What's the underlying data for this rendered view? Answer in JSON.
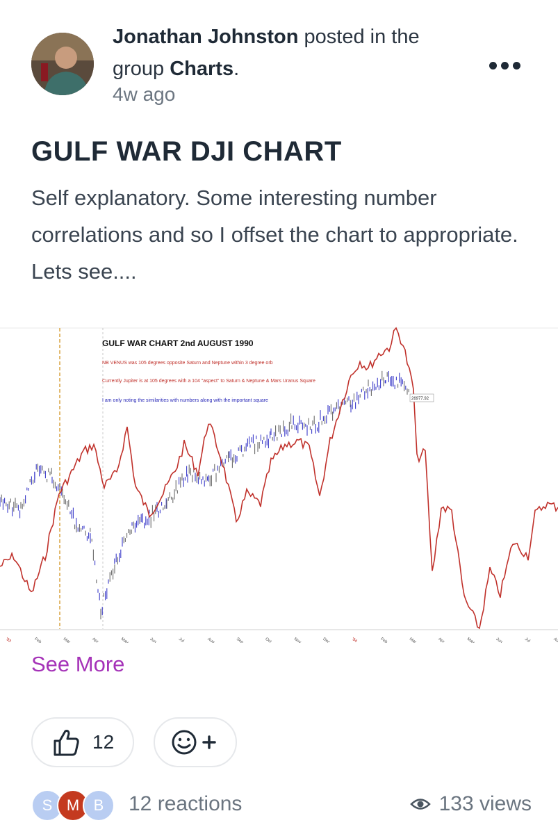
{
  "post": {
    "author": "Jonathan Johnston",
    "posted_in_text": " posted in the group ",
    "group": "Charts",
    "period": ".",
    "time_ago": "4w ago",
    "title": "GULF WAR DJI CHART",
    "body": "Self explanatory. Some interesting number correlations and so I offset the chart to appropriate. Lets see....",
    "see_more": "See More"
  },
  "chart_image": {
    "title": "GULF WAR CHART 2nd AUGUST 1990",
    "notes": [
      "NB VENUS was 105 degrees opposite Saturn and Neptune within 3 degree orb",
      "Currently Jupiter is at 105 degrees with a 104 \"aspect\" to Saturn & Neptune & Mars Uranus Square",
      "I am only noting the similarities with numbers along with the important square"
    ],
    "price_label": "26977.92",
    "x_tick_labels": [
      "'93",
      "Feb",
      "Mar",
      "Apr",
      "May",
      "Jun",
      "Jul",
      "Aug",
      "Sep",
      "Oct",
      "Nov",
      "Dec",
      "'94",
      "Feb",
      "Mar",
      "Apr",
      "May",
      "Jun",
      "Jul",
      "Aug"
    ],
    "colors": {
      "red_series": "#c0312b",
      "candles_up": "#3b3bc9",
      "candles_down": "#6b6b6b",
      "note_red": "#c0312b",
      "note_blue": "#2a2ab8",
      "dashed_line": "#d9a441"
    }
  },
  "actions": {
    "like_count": "12",
    "like_icon": "thumbs-up-icon",
    "add_reaction_icon": "smiley-plus-icon"
  },
  "footer": {
    "avatars": [
      {
        "initial": "S",
        "color": "#b9cdf2"
      },
      {
        "initial": "M",
        "color": "#c43a1f"
      },
      {
        "initial": "B",
        "color": "#b9cdf2"
      }
    ],
    "reactions_text": "12 reactions",
    "views_text": "133 views",
    "views_icon": "eye-icon"
  },
  "colors": {
    "accent": "#a532b8",
    "text": "#1f2a36",
    "muted": "#6b7580"
  }
}
